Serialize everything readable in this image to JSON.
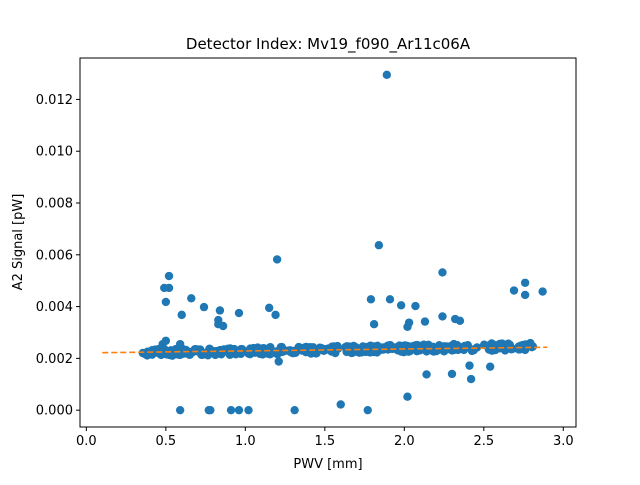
{
  "chart_data": {
    "type": "scatter",
    "title": "Detector Index: Mv19_f090_Ar11c06A",
    "xlabel": "PWV [mm]",
    "ylabel": "A2 Signal [pW]",
    "xlim": [
      -0.04,
      3.08
    ],
    "ylim": [
      -0.00065,
      0.0136
    ],
    "xticks": [
      0.0,
      0.5,
      1.0,
      1.5,
      2.0,
      2.5,
      3.0
    ],
    "xtick_labels": [
      "0.0",
      "0.5",
      "1.0",
      "1.5",
      "2.0",
      "2.5",
      "3.0"
    ],
    "yticks": [
      0.0,
      0.002,
      0.004,
      0.006,
      0.008,
      0.01,
      0.012
    ],
    "ytick_labels": [
      "0.000",
      "0.002",
      "0.004",
      "0.006",
      "0.008",
      "0.010",
      "0.012"
    ],
    "grid": false,
    "colors": {
      "points": "#1f77b4",
      "fit": "#ff7f0e"
    },
    "fit_line": {
      "x": [
        0.1,
        2.9
      ],
      "y": [
        0.00222,
        0.00243
      ]
    },
    "outliers": [
      [
        1.89,
        0.01295
      ],
      [
        1.84,
        0.00637
      ],
      [
        1.2,
        0.00582
      ],
      [
        0.52,
        0.00518
      ],
      [
        2.24,
        0.00532
      ],
      [
        0.49,
        0.00472
      ],
      [
        0.52,
        0.00472
      ],
      [
        0.5,
        0.00418
      ],
      [
        0.66,
        0.00432
      ],
      [
        0.6,
        0.00368
      ],
      [
        0.74,
        0.00398
      ],
      [
        0.84,
        0.00385
      ],
      [
        0.83,
        0.00348
      ],
      [
        0.83,
        0.00332
      ],
      [
        0.86,
        0.00325
      ],
      [
        0.96,
        0.00375
      ],
      [
        1.15,
        0.00395
      ],
      [
        1.19,
        0.00368
      ],
      [
        1.79,
        0.00428
      ],
      [
        1.81,
        0.00332
      ],
      [
        1.91,
        0.00428
      ],
      [
        1.98,
        0.00405
      ],
      [
        2.03,
        0.00338
      ],
      [
        2.02,
        0.00322
      ],
      [
        2.07,
        0.00402
      ],
      [
        2.13,
        0.00342
      ],
      [
        2.24,
        0.00362
      ],
      [
        2.32,
        0.00352
      ],
      [
        2.35,
        0.00345
      ],
      [
        2.69,
        0.00462
      ],
      [
        2.76,
        0.00492
      ],
      [
        2.76,
        0.00445
      ],
      [
        2.87,
        0.00458
      ],
      [
        2.14,
        0.00138
      ],
      [
        2.3,
        0.0014
      ],
      [
        2.42,
        0.0012
      ],
      [
        2.41,
        0.00172
      ],
      [
        2.54,
        0.00168
      ],
      [
        1.6,
        0.00022
      ],
      [
        0.59,
        0.0
      ],
      [
        0.77,
        0.0
      ],
      [
        0.78,
        0.0
      ],
      [
        0.91,
        0.0
      ],
      [
        0.96,
        0.0
      ],
      [
        1.02,
        0.0
      ],
      [
        1.31,
        0.0
      ],
      [
        1.77,
        0.0
      ],
      [
        2.02,
        0.00052
      ],
      [
        1.21,
        0.00188
      ],
      [
        0.59,
        0.00255
      ],
      [
        0.48,
        0.00255
      ],
      [
        0.5,
        0.00268
      ],
      [
        2.22,
        0.0025
      ],
      [
        1.42,
        0.00235
      ],
      [
        2.38,
        0.00248
      ]
    ],
    "dense_band": {
      "x_start": 0.35,
      "x_end": 2.82,
      "count": 380,
      "y_base": 0.00218,
      "y_slope": 0.0001,
      "y_spread": 0.00014
    }
  }
}
